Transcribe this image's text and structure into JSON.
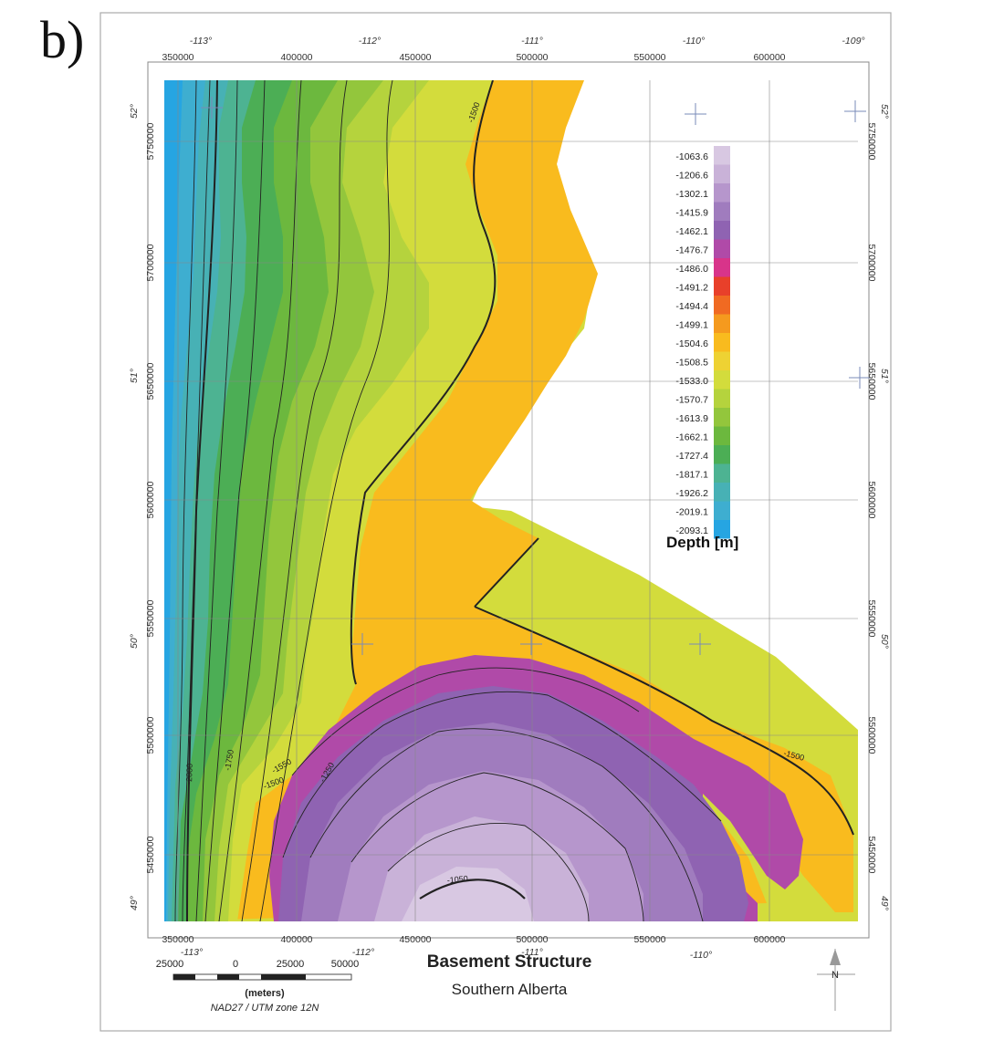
{
  "panel_label": "b)",
  "title": "Basement Structure",
  "subtitle": "Southern Alberta",
  "longitude_labels_top": [
    "-113°",
    "-112°",
    "-111°",
    "-110°",
    "-109°"
  ],
  "longitude_labels_bottom": [
    "-113°",
    "-112°",
    "-111°",
    "-110°"
  ],
  "latitude_labels": [
    "52°",
    "51°",
    "50°",
    "49°"
  ],
  "easting_labels_top": [
    "350000",
    "400000",
    "450000",
    "500000",
    "550000",
    "600000"
  ],
  "easting_labels_bottom": [
    "350000",
    "400000",
    "450000",
    "500000",
    "550000",
    "600000"
  ],
  "northing_labels": [
    "5750000",
    "5700000",
    "5650000",
    "5600000",
    "5550000",
    "5500000",
    "5450000"
  ],
  "legend": {
    "title": "Depth [m]",
    "entries": [
      {
        "label": "-1063.6",
        "color": "#d8c8e2"
      },
      {
        "label": "-1206.6",
        "color": "#c9b2d8"
      },
      {
        "label": "-1302.1",
        "color": "#b696cc"
      },
      {
        "label": "-1415.9",
        "color": "#a07cbe"
      },
      {
        "label": "-1462.1",
        "color": "#8f63b2"
      },
      {
        "label": "-1476.7",
        "color": "#b04aa8"
      },
      {
        "label": "-1486.0",
        "color": "#d8348a"
      },
      {
        "label": "-1491.2",
        "color": "#e8402a"
      },
      {
        "label": "-1494.4",
        "color": "#f06a22"
      },
      {
        "label": "-1499.1",
        "color": "#f59a1e"
      },
      {
        "label": "-1504.6",
        "color": "#f9bb1e"
      },
      {
        "label": "-1508.5",
        "color": "#eed233"
      },
      {
        "label": "-1533.0",
        "color": "#d3dc3c"
      },
      {
        "label": "-1570.7",
        "color": "#b5d33d"
      },
      {
        "label": "-1613.9",
        "color": "#93c63c"
      },
      {
        "label": "-1662.1",
        "color": "#6cb83e"
      },
      {
        "label": "-1727.4",
        "color": "#4cae55"
      },
      {
        "label": "-1817.1",
        "color": "#4db392"
      },
      {
        "label": "-1926.2",
        "color": "#47b1b5"
      },
      {
        "label": "-2019.1",
        "color": "#3eaed0"
      },
      {
        "label": "-2093.1",
        "color": "#26a5e2"
      }
    ]
  },
  "contour_labels": [
    "-1500",
    "-1500",
    "-1500",
    "-1050",
    "-1250",
    "-1550",
    "-2000",
    "-1750"
  ],
  "scale_bar": {
    "ticks": [
      "25000",
      "0",
      "25000",
      "50000"
    ],
    "unit": "(meters)",
    "projection": "NAD27 / UTM zone 12N"
  },
  "north_arrow": "N"
}
